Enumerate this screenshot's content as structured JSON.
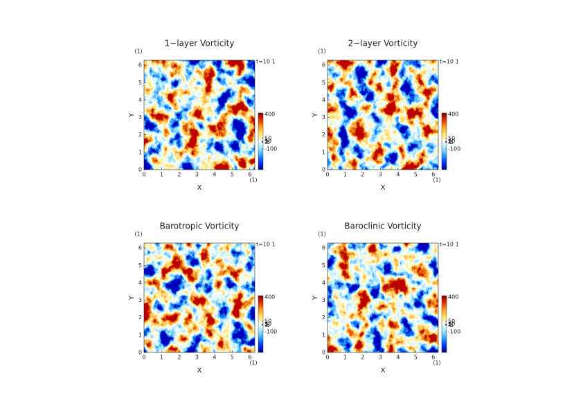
{
  "chart_data": [
    {
      "type": "field",
      "title": "1−layer Vorticity",
      "x_label": "X",
      "y_label": "Y",
      "x_unit": "(1)",
      "y_unit": "(1)",
      "annotation": "t=10 1",
      "xlim": [
        0,
        6.283
      ],
      "ylim": [
        0,
        6.283
      ],
      "xticks": [
        0,
        1,
        2,
        3,
        4,
        5,
        6
      ],
      "yticks": [
        0,
        1,
        2,
        3,
        4,
        5,
        6
      ],
      "colorbar": {
        "clim": [
          -400,
          420
        ],
        "ticks": [
          400,
          50,
          10,
          5,
          1,
          -5,
          -100
        ],
        "colors": [
          "#000080",
          "#0030ff",
          "#2aa0ff",
          "#a0e8ff",
          "#f4fbff",
          "#ffe860",
          "#ffa020",
          "#e03000",
          "#800000"
        ]
      }
    },
    {
      "type": "field",
      "title": "2−layer Vorticity",
      "x_label": "X",
      "y_label": "Y",
      "x_unit": "(1)",
      "y_unit": "(1)",
      "annotation": "t=10 1",
      "xlim": [
        0,
        6.283
      ],
      "ylim": [
        0,
        6.283
      ],
      "xticks": [
        0,
        1,
        2,
        3,
        4,
        5,
        6
      ],
      "yticks": [
        0,
        1,
        2,
        3,
        4,
        5,
        6
      ],
      "colorbar": {
        "clim": [
          -400,
          420
        ],
        "ticks": [
          400,
          50,
          10,
          5,
          1,
          -5,
          -100
        ],
        "colors": [
          "#000080",
          "#0030ff",
          "#2aa0ff",
          "#a0e8ff",
          "#f4fbff",
          "#ffe860",
          "#ffa020",
          "#e03000",
          "#800000"
        ]
      }
    },
    {
      "type": "field",
      "title": "Barotropic Vorticity",
      "x_label": "X",
      "y_label": "Y",
      "x_unit": "(1)",
      "y_unit": "(1)",
      "annotation": "t=10 1",
      "xlim": [
        0,
        6.283
      ],
      "ylim": [
        0,
        6.283
      ],
      "xticks": [
        0,
        1,
        2,
        3,
        4,
        5,
        6
      ],
      "yticks": [
        0,
        1,
        2,
        3,
        4,
        5,
        6
      ],
      "colorbar": {
        "clim": [
          -400,
          420
        ],
        "ticks": [
          400,
          50,
          10,
          5,
          1,
          -5,
          -100
        ],
        "colors": [
          "#000080",
          "#0030ff",
          "#2aa0ff",
          "#a0e8ff",
          "#f4fbff",
          "#ffe860",
          "#ffa020",
          "#e03000",
          "#800000"
        ]
      }
    },
    {
      "type": "field",
      "title": "Baroclinic Vorticity",
      "x_label": "X",
      "y_label": "Y",
      "x_unit": "(1)",
      "y_unit": "(1)",
      "annotation": "t=10 1",
      "xlim": [
        0,
        6.283
      ],
      "ylim": [
        0,
        6.283
      ],
      "xticks": [
        0,
        1,
        2,
        3,
        4,
        5,
        6
      ],
      "yticks": [
        0,
        1,
        2,
        3,
        4,
        5,
        6
      ],
      "colorbar": {
        "clim": [
          -400,
          420
        ],
        "ticks": [
          400,
          50,
          10,
          5,
          1,
          -5,
          -100
        ],
        "colors": [
          "#000080",
          "#0030ff",
          "#2aa0ff",
          "#a0e8ff",
          "#f4fbff",
          "#ffe860",
          "#ffa020",
          "#e03000",
          "#800000"
        ]
      }
    }
  ]
}
